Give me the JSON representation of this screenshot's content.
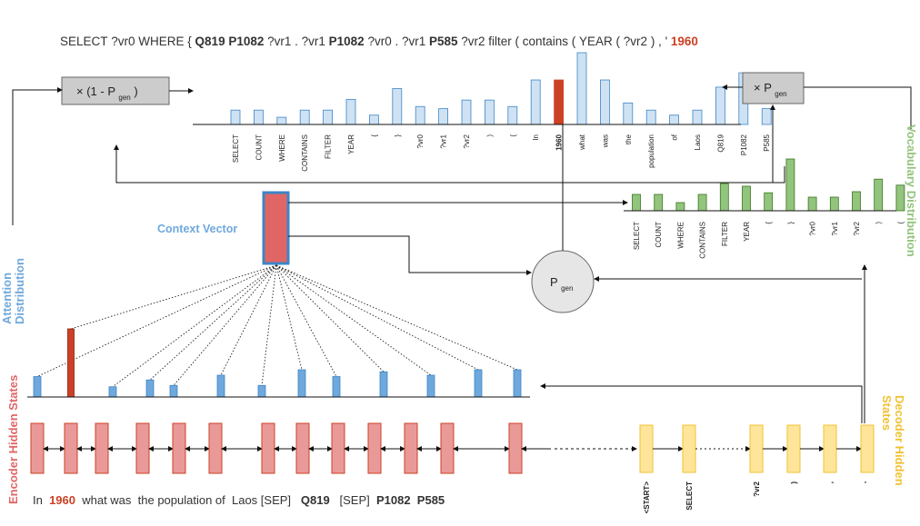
{
  "query": {
    "segments": [
      {
        "text": "SELECT ?vr0 WHERE { ",
        "style": "normal"
      },
      {
        "text": "Q819 P1082",
        "style": "bold"
      },
      {
        "text": " ?vr1 . ?vr1 ",
        "style": "normal"
      },
      {
        "text": "P1082",
        "style": "bold"
      },
      {
        "text": " ?vr0 . ?vr1 ",
        "style": "normal"
      },
      {
        "text": "P585",
        "style": "bold"
      },
      {
        "text": " ?vr2 filter ( contains ( YEAR ( ?vr2 ) , ' ",
        "style": "normal"
      },
      {
        "text": "1960",
        "style": "highlight"
      }
    ]
  },
  "input_sentence": {
    "segments": [
      {
        "text": "In  ",
        "style": "normal"
      },
      {
        "text": "1960",
        "style": "highlight"
      },
      {
        "text": "  what was  the population of  Laos [SEP]   ",
        "style": "normal"
      },
      {
        "text": "Q819",
        "style": "bold"
      },
      {
        "text": "   [SEP]  ",
        "style": "normal"
      },
      {
        "text": "P1082  P585",
        "style": "bold"
      }
    ]
  },
  "labels": {
    "attention_distribution": "Attention Distribution",
    "attention_line1": "Attention",
    "attention_line2": "Distribution",
    "encoder_hidden_states": "Encoder Hidden States",
    "context_vector": "Context Vector",
    "vocabulary_distribution": "Vocabulary Distribution",
    "decoder_hidden_states": "Decoder Hidden States",
    "decoder_line1": "Decoder  Hidden",
    "decoder_line2": "States",
    "one_minus_pgen_prefix": "× (1  - P",
    "one_minus_pgen_sub": "gen",
    "one_minus_pgen_suffix": ")",
    "times_pgen_prefix": "× P",
    "times_pgen_sub": "gen",
    "pgen_main": "P",
    "pgen_sub": "gen"
  },
  "decoder_tokens": [
    "<START>",
    "SELECT",
    "?vr2",
    ")",
    ",",
    "'"
  ],
  "colors": {
    "final_bar": "#cfe2f3",
    "final_highlight": "#cc4125",
    "vocab_bar": "#93c47d",
    "attention_bar": "#6fa8dc",
    "attention_highlight": "#cc4125",
    "encoder_box": "#ea9999",
    "encoder_border": "#cc4125",
    "decoder_box": "#ffe599",
    "decoder_border": "#f1c232",
    "context_fill": "#e06666",
    "context_border": "#3d85c6",
    "attention_label": "#6fa8dc",
    "encoder_label": "#e06666",
    "vocab_label": "#93c47d",
    "decoder_label": "#f1c232",
    "highlight_text": "#cc4125"
  },
  "chart_data": [
    {
      "type": "bar",
      "name": "final_distribution",
      "categories": [
        "SELECT",
        "COUNT",
        "WHERE",
        "CONTAINS",
        "FILTER",
        "YEAR",
        "{",
        "}",
        "?vr0",
        "?vr1",
        "?vr2",
        ")",
        "(",
        "In",
        "1960",
        "what",
        "was",
        "the",
        "population",
        "of",
        "Laos",
        "Q819",
        "P1082",
        "P585"
      ],
      "values": [
        0.2,
        0.2,
        0.1,
        0.2,
        0.2,
        0.35,
        0.13,
        0.5,
        0.25,
        0.22,
        0.34,
        0.34,
        0.25,
        0.62,
        0.62,
        1.0,
        0.62,
        0.3,
        0.2,
        0.13,
        0.2,
        0.52,
        0.72,
        0.22
      ],
      "highlight_index": 14
    },
    {
      "type": "bar",
      "name": "vocabulary_distribution",
      "categories": [
        "SELECT",
        "COUNT",
        "WHERE",
        "CONTAINS",
        "FILTER",
        "YEAR",
        "{",
        "}",
        "?vr0",
        "?vr1",
        "?vr2",
        ")",
        "("
      ],
      "values": [
        0.3,
        0.3,
        0.15,
        0.3,
        0.5,
        0.45,
        0.33,
        0.95,
        0.25,
        0.25,
        0.35,
        0.58,
        0.47
      ]
    },
    {
      "type": "bar",
      "name": "attention_distribution",
      "values": [
        0.3,
        1.0,
        0.15,
        0.25,
        0.17,
        0.32,
        0.17,
        0.4,
        0.3,
        0.37,
        0.32,
        0.4,
        0.4
      ],
      "highlight_index": 1
    }
  ]
}
